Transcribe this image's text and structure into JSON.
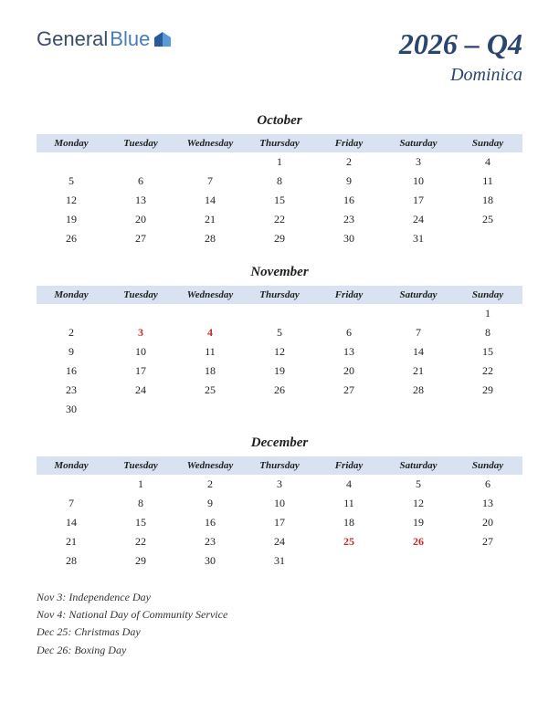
{
  "logo": {
    "part1": "General",
    "part2": "Blue"
  },
  "title": {
    "main": "2026 – Q4",
    "sub": "Dominica"
  },
  "colors": {
    "header_bg": "#d8e2f0",
    "title_color": "#2a4570",
    "holiday_color": "#c82828",
    "text_color": "#222222",
    "logo_color1": "#3a4d6c",
    "logo_color2": "#4a7db8"
  },
  "day_headers": [
    "Monday",
    "Tuesday",
    "Wednesday",
    "Thursday",
    "Friday",
    "Saturday",
    "Sunday"
  ],
  "months": [
    {
      "name": "October",
      "weeks": [
        [
          "",
          "",
          "",
          "1",
          "2",
          "3",
          "4"
        ],
        [
          "5",
          "6",
          "7",
          "8",
          "9",
          "10",
          "11"
        ],
        [
          "12",
          "13",
          "14",
          "15",
          "16",
          "17",
          "18"
        ],
        [
          "19",
          "20",
          "21",
          "22",
          "23",
          "24",
          "25"
        ],
        [
          "26",
          "27",
          "28",
          "29",
          "30",
          "31",
          ""
        ]
      ],
      "holidays": []
    },
    {
      "name": "November",
      "weeks": [
        [
          "",
          "",
          "",
          "",
          "",
          "",
          "1"
        ],
        [
          "2",
          "3",
          "4",
          "5",
          "6",
          "7",
          "8"
        ],
        [
          "9",
          "10",
          "11",
          "12",
          "13",
          "14",
          "15"
        ],
        [
          "16",
          "17",
          "18",
          "19",
          "20",
          "21",
          "22"
        ],
        [
          "23",
          "24",
          "25",
          "26",
          "27",
          "28",
          "29"
        ],
        [
          "30",
          "",
          "",
          "",
          "",
          "",
          ""
        ]
      ],
      "holidays": [
        "3",
        "4"
      ]
    },
    {
      "name": "December",
      "weeks": [
        [
          "",
          "1",
          "2",
          "3",
          "4",
          "5",
          "6"
        ],
        [
          "7",
          "8",
          "9",
          "10",
          "11",
          "12",
          "13"
        ],
        [
          "14",
          "15",
          "16",
          "17",
          "18",
          "19",
          "20"
        ],
        [
          "21",
          "22",
          "23",
          "24",
          "25",
          "26",
          "27"
        ],
        [
          "28",
          "29",
          "30",
          "31",
          "",
          "",
          ""
        ]
      ],
      "holidays": [
        "25",
        "26"
      ]
    }
  ],
  "holiday_list": [
    "Nov 3: Independence Day",
    "Nov 4: National Day of Community Service",
    "Dec 25: Christmas Day",
    "Dec 26: Boxing Day"
  ]
}
